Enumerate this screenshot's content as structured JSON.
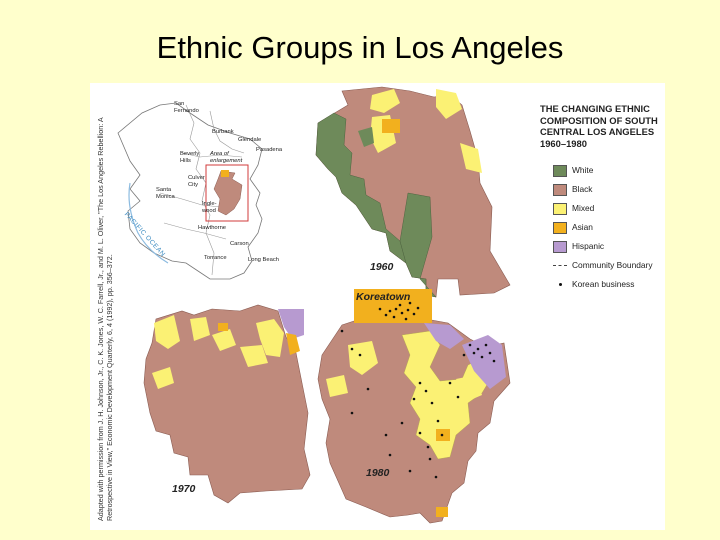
{
  "title": "Ethnic Groups in Los Angeles",
  "figure": {
    "legend": {
      "title": "THE CHANGING ETHNIC COMPOSITION OF SOUTH CENTRAL LOS ANGELES 1960–1980",
      "items": [
        {
          "label": "White",
          "color": "#6e8a5a",
          "kind": "swatch"
        },
        {
          "label": "Black",
          "color": "#bf8a7c",
          "kind": "swatch"
        },
        {
          "label": "Mixed",
          "color": "#fbf174",
          "kind": "swatch"
        },
        {
          "label": "Asian",
          "color": "#f2b01e",
          "kind": "swatch"
        },
        {
          "label": "Hispanic",
          "color": "#b79ad0",
          "kind": "swatch"
        },
        {
          "label": "Community Boundary",
          "kind": "line"
        },
        {
          "label": "Korean business",
          "kind": "dot"
        }
      ]
    },
    "credit": "Adapted with permission from J. H. Johnson, Jr., C. K. Jones, W. C. Farrell, Jr., and M. L. Oliver, \"The Los Angeles Rebellion: A Retrospective in View,\" Economic Development Quarterly, 6, 4 (1992), pp. 356–372.",
    "inset": {
      "places": {
        "san_fernando": "San Fernando",
        "burbank": "Burbank",
        "glendale": "Glendale",
        "pasadena": "Pasadena",
        "beverly_hills": "Beverly Hills",
        "culver_city": "Culver City",
        "santa_monica": "Santa Monica",
        "inglewood": "Ingle-wood",
        "hawthorne": "Hawthorne",
        "carson": "Carson",
        "torrance": "Torrance",
        "long_beach": "Long Beach"
      },
      "area_label": "Area of enlargement",
      "ocean": "PACIFIC OCEAN"
    },
    "maps": {
      "y1960": "1960",
      "y1970": "1970",
      "y1980": "1980",
      "koreatown": "Koreatown"
    }
  }
}
